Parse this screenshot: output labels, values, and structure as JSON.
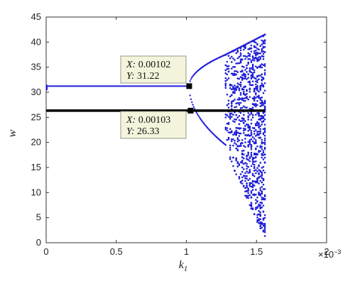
{
  "chart_data": {
    "type": "scatter",
    "title": "",
    "xlabel": "k",
    "xlabel_subscript": "1",
    "ylabel": "w",
    "x_multiplier": "×10",
    "x_multiplier_exponent": "−3",
    "xlim": [
      0,
      2
    ],
    "ylim": [
      0,
      45
    ],
    "x_ticks": [
      "0",
      "0.5",
      "1",
      "1.5",
      "2"
    ],
    "y_ticks": [
      "0",
      "5",
      "10",
      "15",
      "20",
      "25",
      "30",
      "35",
      "40",
      "45"
    ],
    "grid": false,
    "colors": {
      "blue_branch": "#1f1fd8",
      "black_branch": "#000000",
      "tooltip_bg": "#f4f4dc",
      "tooltip_border": "#999988"
    },
    "series": [
      {
        "color": "blue",
        "description_points": "upper stable branch w≈31.22 for k1 in [0, 1.02e-3], then period-doubling cascade into chaos up to k1≈1.56e-3",
        "stable": {
          "x_range": [
            0.0,
            1.02
          ],
          "y": 31.22
        },
        "pitchfork": {
          "x_range": [
            1.02,
            1.28
          ],
          "upper_end": 37.5,
          "lower_end": 19.5
        },
        "chaos_envelope": {
          "x_range": [
            1.28,
            1.56
          ],
          "top": [
            37.5,
            41.5
          ],
          "bottom": [
            19.5,
            1.0
          ]
        }
      },
      {
        "color": "black",
        "stable": {
          "x_range": [
            0.0,
            1.56
          ],
          "y": 26.33
        }
      }
    ],
    "annotations": [
      {
        "marker_x": 1.02,
        "marker_y": 31.22,
        "x_label": "X: ",
        "x_value": "0.00102",
        "y_label": "Y: ",
        "y_value": "31.22"
      },
      {
        "marker_x": 1.03,
        "marker_y": 26.33,
        "x_label": "X: ",
        "x_value": "0.00103",
        "y_label": "Y: ",
        "y_value": "26.33"
      }
    ]
  }
}
